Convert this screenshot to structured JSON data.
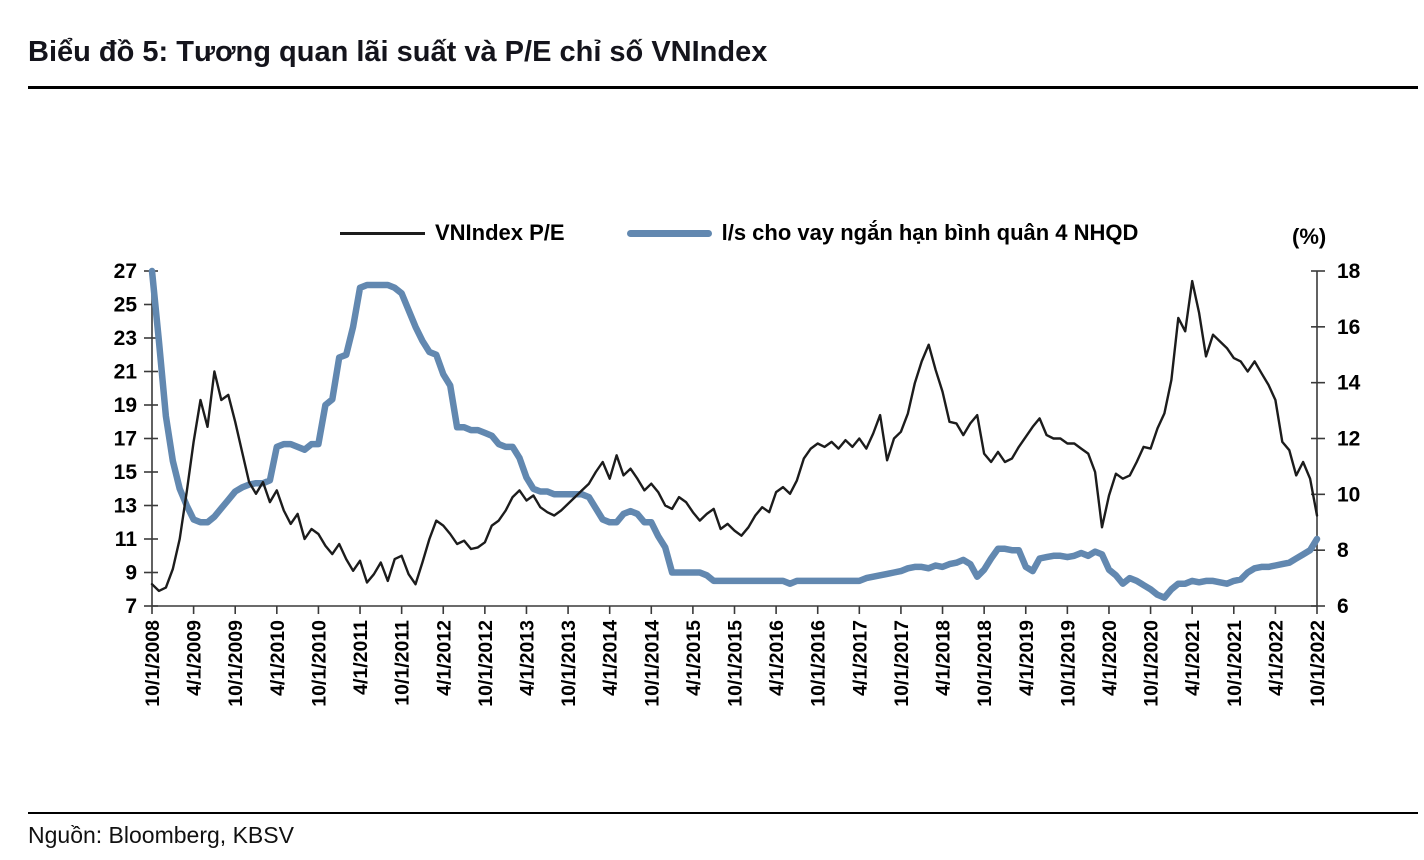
{
  "header": {
    "title": "Biểu đồ 5: Tương quan lãi suất và P/E chỉ số VNIndex"
  },
  "source": {
    "text": "Nguồn: Bloomberg, KBSV"
  },
  "chart_data": {
    "type": "line",
    "title": "Biểu đồ 5: Tương quan lãi suất và P/E chỉ số VNIndex",
    "x_start": "10/1/2008",
    "x_frequency": "monthly",
    "x_tick_interval_months": 6,
    "x_tick_labels": [
      "10/1/2008",
      "4/1/2009",
      "10/1/2009",
      "4/1/2010",
      "10/1/2010",
      "4/1/2011",
      "10/1/2011",
      "4/1/2012",
      "10/1/2012",
      "4/1/2013",
      "10/1/2013",
      "4/1/2014",
      "10/1/2014",
      "4/1/2015",
      "10/1/2015",
      "4/1/2016",
      "10/1/2016",
      "4/1/2017",
      "10/1/2017",
      "4/1/2018",
      "10/1/2018",
      "4/1/2019",
      "10/1/2019",
      "4/1/2020",
      "10/1/2020",
      "4/1/2021",
      "10/1/2021",
      "4/1/2022",
      "10/1/2022"
    ],
    "left_axis": {
      "min": 7,
      "max": 27,
      "step": 2
    },
    "right_axis": {
      "min": 6,
      "max": 18,
      "step": 2,
      "unit": "(%)"
    },
    "grid": false,
    "legend_position": "top-center",
    "series": [
      {
        "name": "VNIndex P/E",
        "axis": "left",
        "color": "#1c1c1c",
        "stroke_width": 2.4,
        "values": [
          8.3,
          7.9,
          8.1,
          9.2,
          11.0,
          13.8,
          16.8,
          19.3,
          17.7,
          21.0,
          19.3,
          19.6,
          18.0,
          16.2,
          14.4,
          13.7,
          14.4,
          13.2,
          13.9,
          12.7,
          11.9,
          12.5,
          11.0,
          11.6,
          11.3,
          10.6,
          10.1,
          10.7,
          9.8,
          9.1,
          9.7,
          8.4,
          8.9,
          9.6,
          8.5,
          9.8,
          10.0,
          8.9,
          8.3,
          9.6,
          11.0,
          12.1,
          11.8,
          11.3,
          10.7,
          10.9,
          10.4,
          10.5,
          10.8,
          11.8,
          12.1,
          12.7,
          13.5,
          13.9,
          13.3,
          13.6,
          12.9,
          12.6,
          12.4,
          12.7,
          13.1,
          13.5,
          13.9,
          14.3,
          15.0,
          15.6,
          14.6,
          16.0,
          14.8,
          15.2,
          14.6,
          13.9,
          14.3,
          13.8,
          13.0,
          12.8,
          13.5,
          13.2,
          12.6,
          12.1,
          12.5,
          12.8,
          11.6,
          11.9,
          11.5,
          11.2,
          11.7,
          12.4,
          12.9,
          12.6,
          13.8,
          14.1,
          13.7,
          14.5,
          15.8,
          16.4,
          16.7,
          16.5,
          16.8,
          16.4,
          16.9,
          16.5,
          17.0,
          16.4,
          17.3,
          18.4,
          15.7,
          17.0,
          17.4,
          18.5,
          20.3,
          21.6,
          22.6,
          21.1,
          19.8,
          18.0,
          17.9,
          17.2,
          17.9,
          18.4,
          16.1,
          15.6,
          16.2,
          15.6,
          15.8,
          16.5,
          17.1,
          17.7,
          18.2,
          17.2,
          17.0,
          17.0,
          16.7,
          16.7,
          16.4,
          16.1,
          15.0,
          11.7,
          13.6,
          14.9,
          14.6,
          14.8,
          15.6,
          16.5,
          16.4,
          17.6,
          18.5,
          20.5,
          24.2,
          23.4,
          26.4,
          24.5,
          21.9,
          23.2,
          22.8,
          22.4,
          21.8,
          21.6,
          21.0,
          21.6,
          20.9,
          20.2,
          19.3,
          16.8,
          16.3,
          14.8,
          15.6,
          14.6,
          12.4
        ]
      },
      {
        "name": "l/s cho vay ngắn hạn bình quân 4 NHQD",
        "axis": "right",
        "color": "#6288b0",
        "stroke_width": 6.5,
        "values": [
          18.0,
          15.5,
          12.8,
          11.2,
          10.2,
          9.6,
          9.1,
          9.0,
          9.0,
          9.2,
          9.5,
          9.8,
          10.1,
          10.25,
          10.35,
          10.4,
          10.4,
          10.5,
          11.7,
          11.8,
          11.8,
          11.7,
          11.6,
          11.8,
          11.8,
          13.2,
          13.4,
          14.9,
          15.0,
          16.0,
          17.4,
          17.5,
          17.5,
          17.5,
          17.5,
          17.4,
          17.2,
          16.6,
          16.0,
          15.5,
          15.1,
          15.0,
          14.3,
          13.9,
          12.4,
          12.4,
          12.3,
          12.3,
          12.2,
          12.1,
          11.8,
          11.7,
          11.7,
          11.3,
          10.6,
          10.2,
          10.1,
          10.1,
          10.0,
          10.0,
          10.0,
          10.0,
          10.0,
          9.9,
          9.5,
          9.1,
          9.0,
          9.0,
          9.3,
          9.4,
          9.3,
          9.0,
          9.0,
          8.5,
          8.1,
          7.2,
          7.2,
          7.2,
          7.2,
          7.2,
          7.1,
          6.9,
          6.9,
          6.9,
          6.9,
          6.9,
          6.9,
          6.9,
          6.9,
          6.9,
          6.9,
          6.9,
          6.8,
          6.9,
          6.9,
          6.9,
          6.9,
          6.9,
          6.9,
          6.9,
          6.9,
          6.9,
          6.9,
          7.0,
          7.05,
          7.1,
          7.15,
          7.2,
          7.25,
          7.35,
          7.4,
          7.4,
          7.35,
          7.45,
          7.4,
          7.5,
          7.55,
          7.65,
          7.5,
          7.05,
          7.3,
          7.7,
          8.05,
          8.05,
          8.0,
          8.0,
          7.4,
          7.25,
          7.7,
          7.75,
          7.8,
          7.8,
          7.75,
          7.8,
          7.9,
          7.8,
          7.95,
          7.85,
          7.3,
          7.1,
          6.8,
          7.0,
          6.9,
          6.75,
          6.6,
          6.4,
          6.3,
          6.6,
          6.8,
          6.8,
          6.9,
          6.85,
          6.9,
          6.9,
          6.85,
          6.8,
          6.9,
          6.95,
          7.2,
          7.35,
          7.4,
          7.4,
          7.45,
          7.5,
          7.55,
          7.7,
          7.85,
          8.0,
          8.4
        ]
      }
    ]
  }
}
